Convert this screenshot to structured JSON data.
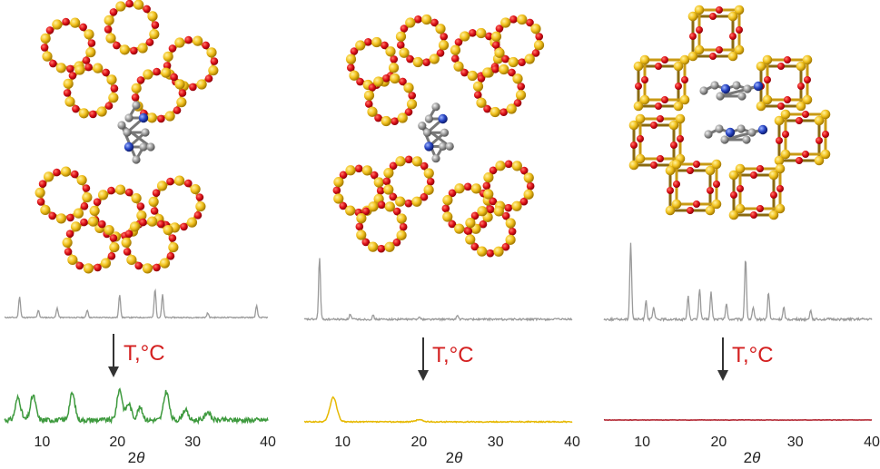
{
  "panels": [
    {
      "id": "left",
      "arrow_label": "T,°C",
      "xlabel_prefix": "2",
      "xlabel_symbol": "θ",
      "ticks": [
        "10",
        "20",
        "30",
        "40"
      ],
      "before_color": "#9a9a9a",
      "after_color": "#3e9a3e",
      "arrow_label_color": "#d42020",
      "before_peaks": [
        [
          7.0,
          0.55
        ],
        [
          9.5,
          0.2
        ],
        [
          12.0,
          0.25
        ],
        [
          16.0,
          0.2
        ],
        [
          20.3,
          0.6
        ],
        [
          25.0,
          0.75
        ],
        [
          26.0,
          0.6
        ],
        [
          32.0,
          0.12
        ],
        [
          38.5,
          0.3
        ]
      ],
      "after_peaks": [
        [
          6.8,
          0.55
        ],
        [
          8.8,
          0.6
        ],
        [
          14.0,
          0.65
        ],
        [
          20.3,
          0.75
        ],
        [
          21.5,
          0.4
        ],
        [
          23.0,
          0.3
        ],
        [
          26.5,
          0.7
        ],
        [
          29.0,
          0.25
        ],
        [
          32.0,
          0.2
        ]
      ]
    },
    {
      "id": "middle",
      "arrow_label": "T,°C",
      "xlabel_prefix": "2",
      "xlabel_symbol": "θ",
      "ticks": [
        "10",
        "20",
        "30",
        "40"
      ],
      "before_color": "#9a9a9a",
      "after_color": "#e6b800",
      "arrow_label_color": "#d42020",
      "before_peaks": [
        [
          7.0,
          1.0
        ],
        [
          11.0,
          0.08
        ],
        [
          14.0,
          0.06
        ],
        [
          20.0,
          0.05
        ],
        [
          25.0,
          0.06
        ]
      ],
      "after_peaks": [
        [
          8.8,
          0.9
        ],
        [
          20.0,
          0.08
        ]
      ]
    },
    {
      "id": "right",
      "arrow_label": "T,°C",
      "xlabel_prefix": "2",
      "xlabel_symbol": "θ",
      "ticks": [
        "10",
        "20",
        "30",
        "40"
      ],
      "before_color": "#9a9a9a",
      "after_color": "#b01e2a",
      "arrow_label_color": "#d42020",
      "before_peaks": [
        [
          8.5,
          1.0
        ],
        [
          10.5,
          0.25
        ],
        [
          11.5,
          0.15
        ],
        [
          16.0,
          0.3
        ],
        [
          17.5,
          0.4
        ],
        [
          19.0,
          0.35
        ],
        [
          21.0,
          0.2
        ],
        [
          23.5,
          0.8
        ],
        [
          24.5,
          0.15
        ],
        [
          26.5,
          0.35
        ],
        [
          28.5,
          0.15
        ],
        [
          32.0,
          0.12
        ]
      ],
      "after_peaks": []
    }
  ]
}
